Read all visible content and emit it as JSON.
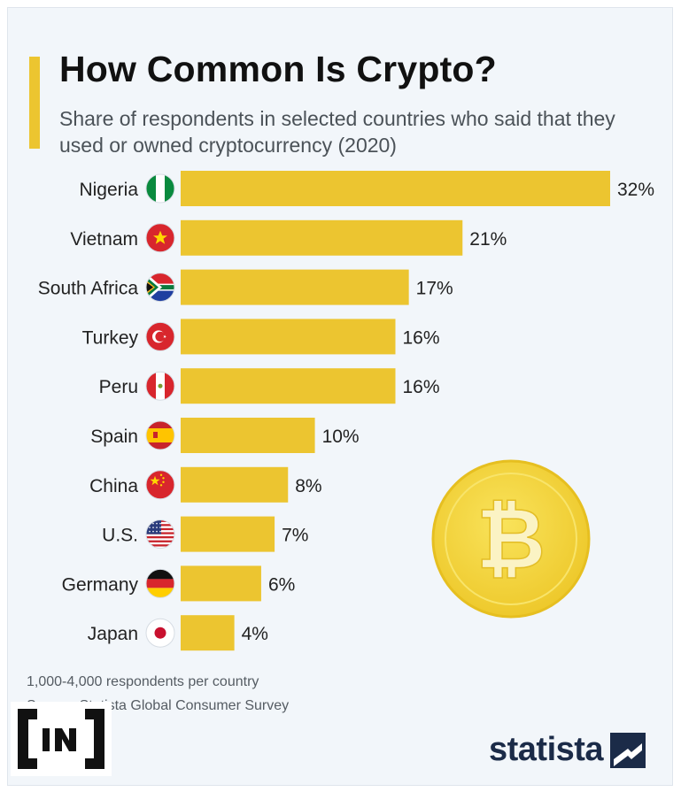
{
  "header": {
    "title": "How Common Is Crypto?",
    "subtitle": "Share of respondents in selected countries who said that they used or owned cryptocurrency (2020)"
  },
  "colors": {
    "bar": "#ecc530",
    "accent": "#ecc530",
    "coin": "#f4d63a",
    "brand_dark": "#1b2b48"
  },
  "chart_data": {
    "type": "bar",
    "orientation": "horizontal",
    "title": "How Common Is Crypto?",
    "subtitle": "Share of respondents in selected countries who said that they used or owned cryptocurrency (2020)",
    "categories": [
      "Nigeria",
      "Vietnam",
      "South Africa",
      "Turkey",
      "Peru",
      "Spain",
      "China",
      "U.S.",
      "Germany",
      "Japan"
    ],
    "values": [
      32,
      21,
      17,
      16,
      16,
      10,
      8,
      7,
      6,
      4
    ],
    "value_labels": [
      "32%",
      "21%",
      "17%",
      "16%",
      "16%",
      "10%",
      "8%",
      "7%",
      "6%",
      "4%"
    ],
    "flags": [
      "nigeria-flag-icon",
      "vietnam-flag-icon",
      "south-africa-flag-icon",
      "turkey-flag-icon",
      "peru-flag-icon",
      "spain-flag-icon",
      "china-flag-icon",
      "us-flag-icon",
      "germany-flag-icon",
      "japan-flag-icon"
    ],
    "xlim": [
      0,
      32
    ],
    "unit": "%",
    "grid": false,
    "legend": "none"
  },
  "footer": {
    "note": "1,000-4,000 respondents per country",
    "source": "Source: Statista Global Consumer Survey",
    "brand": "statista",
    "watermark": "[IN]"
  },
  "icons": {
    "decoration": "bitcoin-coin-icon",
    "license": "creative-commons-icon"
  }
}
